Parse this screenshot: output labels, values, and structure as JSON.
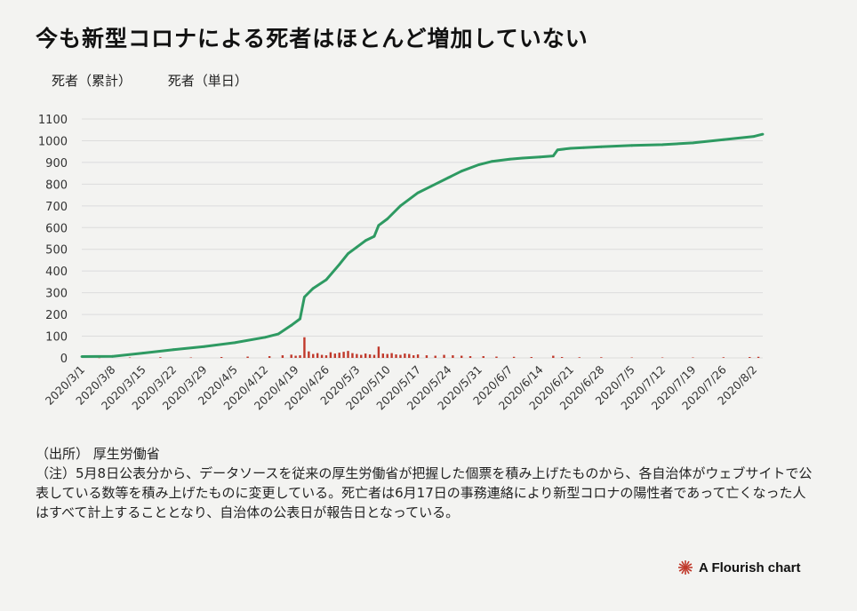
{
  "title": "今も新型コロナによる死者はほとんど増加していない",
  "legend": {
    "cumulative": "死者（累計）",
    "daily": "死者（単日）"
  },
  "colors": {
    "cumulative": "#2e9a62",
    "daily": "#c0392b",
    "grid": "#dcdcdc"
  },
  "source": "（出所） 厚生労働省",
  "note": "（注）5月8日公表分から、データソースを従来の厚生労働省が把握した個票を積み上げたものから、各自治体がウェブサイトで公表している数等を積み上げたものに変更している。死亡者は6月17日の事務連絡により新型コロナの陽性者であって亡くなった人はすべて計上することとなり、自治体の公表日が報告日となっている。",
  "brand": {
    "label": "A Flourish chart",
    "logo": "flourish-logo-icon"
  },
  "chart_data": {
    "type": "line",
    "x_type": "date",
    "x_tick_labels": [
      "2020/3/1",
      "2020/3/8",
      "2020/3/15",
      "2020/3/22",
      "2020/3/29",
      "2020/4/5",
      "2020/4/12",
      "2020/4/19",
      "2020/4/26",
      "2020/5/3",
      "2020/5/10",
      "2020/5/17",
      "2020/5/24",
      "2020/5/31",
      "2020/6/7",
      "2020/6/14",
      "2020/6/21",
      "2020/6/28",
      "2020/7/5",
      "2020/7/12",
      "2020/7/19",
      "2020/7/26",
      "2020/8/2"
    ],
    "y_ticks": [
      0,
      100,
      200,
      300,
      400,
      500,
      600,
      700,
      800,
      900,
      1000,
      1100
    ],
    "ylim": [
      0,
      1100
    ],
    "xlim": [
      "2020-03-01",
      "2020-08-04"
    ],
    "grid": true,
    "series": [
      {
        "name": "死者（累計）",
        "kind": "line",
        "x": [
          "2020-03-01",
          "2020-03-08",
          "2020-03-15",
          "2020-03-22",
          "2020-03-29",
          "2020-04-05",
          "2020-04-12",
          "2020-04-15",
          "2020-04-18",
          "2020-04-20",
          "2020-04-21",
          "2020-04-23",
          "2020-04-26",
          "2020-04-29",
          "2020-05-01",
          "2020-05-03",
          "2020-05-05",
          "2020-05-07",
          "2020-05-08",
          "2020-05-10",
          "2020-05-13",
          "2020-05-17",
          "2020-05-20",
          "2020-05-24",
          "2020-05-27",
          "2020-05-31",
          "2020-06-03",
          "2020-06-07",
          "2020-06-10",
          "2020-06-14",
          "2020-06-17",
          "2020-06-18",
          "2020-06-21",
          "2020-06-24",
          "2020-06-28",
          "2020-07-05",
          "2020-07-12",
          "2020-07-19",
          "2020-07-26",
          "2020-08-02",
          "2020-08-04"
        ],
        "values": [
          6,
          7,
          22,
          38,
          52,
          70,
          95,
          110,
          150,
          180,
          280,
          320,
          360,
          430,
          480,
          510,
          540,
          560,
          610,
          640,
          700,
          760,
          790,
          830,
          860,
          890,
          905,
          915,
          920,
          925,
          930,
          958,
          965,
          968,
          972,
          978,
          982,
          990,
          1005,
          1020,
          1030
        ]
      },
      {
        "name": "死者（単日）",
        "kind": "bar",
        "x": [
          "2020-03-05",
          "2020-03-12",
          "2020-03-19",
          "2020-03-26",
          "2020-04-02",
          "2020-04-08",
          "2020-04-13",
          "2020-04-16",
          "2020-04-18",
          "2020-04-19",
          "2020-04-20",
          "2020-04-21",
          "2020-04-22",
          "2020-04-23",
          "2020-04-24",
          "2020-04-25",
          "2020-04-26",
          "2020-04-27",
          "2020-04-28",
          "2020-04-29",
          "2020-04-30",
          "2020-05-01",
          "2020-05-02",
          "2020-05-03",
          "2020-05-04",
          "2020-05-05",
          "2020-05-06",
          "2020-05-07",
          "2020-05-08",
          "2020-05-09",
          "2020-05-10",
          "2020-05-11",
          "2020-05-12",
          "2020-05-13",
          "2020-05-14",
          "2020-05-15",
          "2020-05-16",
          "2020-05-17",
          "2020-05-19",
          "2020-05-21",
          "2020-05-23",
          "2020-05-25",
          "2020-05-27",
          "2020-05-29",
          "2020-06-01",
          "2020-06-04",
          "2020-06-08",
          "2020-06-12",
          "2020-06-17",
          "2020-06-19",
          "2020-06-23",
          "2020-06-28",
          "2020-07-05",
          "2020-07-12",
          "2020-07-19",
          "2020-07-26",
          "2020-08-01",
          "2020-08-03"
        ],
        "values": [
          1,
          2,
          3,
          2,
          4,
          6,
          8,
          12,
          15,
          10,
          12,
          95,
          30,
          18,
          22,
          14,
          12,
          26,
          20,
          24,
          28,
          32,
          22,
          18,
          14,
          20,
          16,
          14,
          52,
          20,
          18,
          22,
          16,
          14,
          20,
          18,
          12,
          16,
          12,
          10,
          14,
          12,
          10,
          8,
          8,
          6,
          5,
          4,
          10,
          4,
          3,
          3,
          2,
          2,
          2,
          3,
          4,
          5
        ]
      }
    ]
  }
}
